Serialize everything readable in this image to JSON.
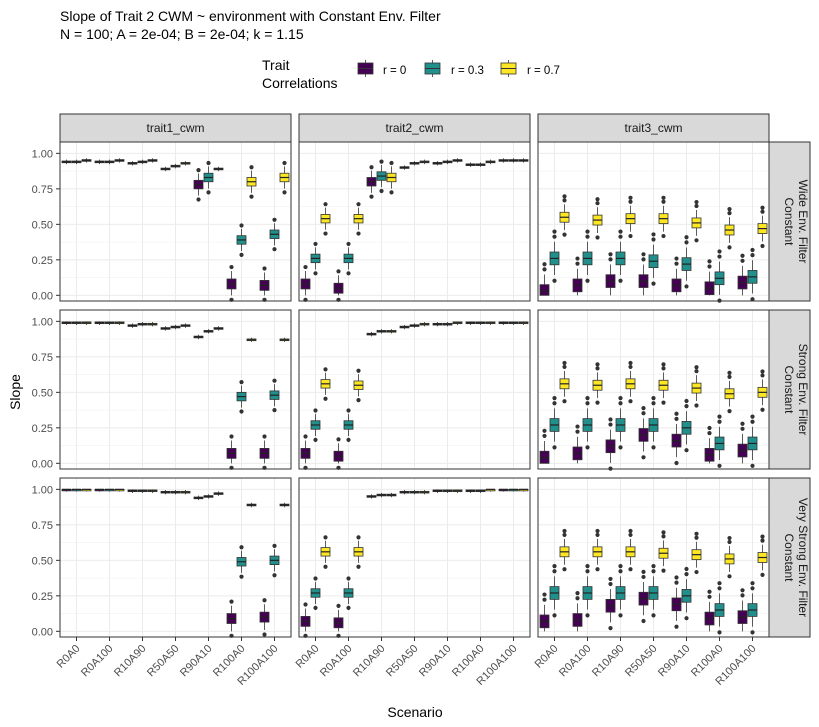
{
  "chart_data": {
    "type": "box",
    "title_line1": "Slope of Trait 2 CWM ~ environment with Constant Env. Filter",
    "title_line2": "N = 100; A = 2e-04; B = 2e-04; k = 1.15",
    "xlabel": "Scenario",
    "ylabel": "Slope",
    "ylim": [
      -0.04,
      1.08
    ],
    "yticks": [
      "0.00",
      "0.25",
      "0.50",
      "0.75",
      "1.00"
    ],
    "categories": [
      "R0A0",
      "R0A100",
      "R10A90",
      "R50A50",
      "R90A10",
      "R100A0",
      "R100A100"
    ],
    "legend": {
      "title_line1": "Trait",
      "title_line2": "Correlations",
      "position": "top",
      "entries": [
        {
          "label": "r = 0",
          "color": "#440154"
        },
        {
          "label": "r = 0.3",
          "color": "#21908C"
        },
        {
          "label": "r = 0.7",
          "color": "#FDE725"
        }
      ]
    },
    "columns": [
      "trait1_cwm",
      "trait2_cwm",
      "trait3_cwm"
    ],
    "rows": [
      {
        "line1": "Constant",
        "line2": "Wide Env. Filter"
      },
      {
        "line1": "Constant",
        "line2": "Strong Env. Filter"
      },
      {
        "line1": "Constant",
        "line2": "Very Strong Env. Filter"
      }
    ],
    "boxes_note": "medians per panel [row][col][series][category]; null = series not shown for that category",
    "medians": [
      [
        [
          [
            0.94,
            0.94,
            0.93,
            0.89,
            0.78,
            0.08,
            0.07
          ],
          [
            0.94,
            0.94,
            0.94,
            0.91,
            0.83,
            0.39,
            0.43
          ],
          [
            0.95,
            0.95,
            0.95,
            0.93,
            0.89,
            0.8,
            0.83
          ]
        ],
        [
          [
            0.08,
            0.05,
            0.8,
            0.9,
            0.93,
            0.92,
            0.95
          ],
          [
            0.26,
            0.26,
            0.84,
            0.93,
            0.94,
            0.92,
            0.95
          ],
          [
            0.54,
            0.54,
            0.83,
            0.94,
            0.95,
            0.94,
            0.95
          ]
        ],
        [
          [
            0.03,
            0.07,
            0.1,
            0.1,
            0.07,
            0.05,
            0.09
          ],
          [
            0.26,
            0.26,
            0.26,
            0.24,
            0.22,
            0.12,
            0.13
          ],
          [
            0.55,
            0.53,
            0.54,
            0.54,
            0.51,
            0.46,
            0.47
          ]
        ]
      ],
      [
        [
          [
            0.99,
            0.99,
            0.97,
            0.95,
            0.89,
            0.07,
            0.07
          ],
          [
            0.99,
            0.99,
            0.98,
            0.96,
            0.93,
            0.47,
            0.48
          ],
          [
            0.99,
            0.99,
            0.98,
            0.97,
            0.95,
            0.87,
            0.87
          ]
        ],
        [
          [
            0.07,
            0.05,
            0.91,
            0.96,
            0.98,
            0.99,
            0.99
          ],
          [
            0.27,
            0.27,
            0.93,
            0.97,
            0.98,
            0.99,
            0.99
          ],
          [
            0.56,
            0.55,
            0.93,
            0.98,
            0.99,
            0.99,
            0.99
          ]
        ],
        [
          [
            0.04,
            0.07,
            0.12,
            0.2,
            0.16,
            0.06,
            0.09
          ],
          [
            0.27,
            0.27,
            0.27,
            0.27,
            0.25,
            0.14,
            0.14
          ],
          [
            0.56,
            0.55,
            0.56,
            0.55,
            0.53,
            0.49,
            0.5
          ]
        ]
      ],
      [
        [
          [
            1.0,
            1.0,
            0.99,
            0.98,
            0.94,
            0.09,
            0.1
          ],
          [
            1.0,
            1.0,
            0.99,
            0.98,
            0.95,
            0.49,
            0.5
          ],
          [
            1.0,
            1.0,
            0.99,
            0.98,
            0.97,
            0.89,
            0.89
          ]
        ],
        [
          [
            0.07,
            0.06,
            0.95,
            0.98,
            0.99,
            0.99,
            1.0
          ],
          [
            0.27,
            0.27,
            0.96,
            0.98,
            0.99,
            0.99,
            1.0
          ],
          [
            0.56,
            0.56,
            0.96,
            0.98,
            0.99,
            1.0,
            1.0
          ]
        ],
        [
          [
            0.07,
            0.08,
            0.18,
            0.23,
            0.19,
            0.09,
            0.1
          ],
          [
            0.27,
            0.27,
            0.27,
            0.27,
            0.25,
            0.15,
            0.15
          ],
          [
            0.56,
            0.56,
            0.56,
            0.55,
            0.54,
            0.51,
            0.52
          ]
        ]
      ]
    ]
  }
}
